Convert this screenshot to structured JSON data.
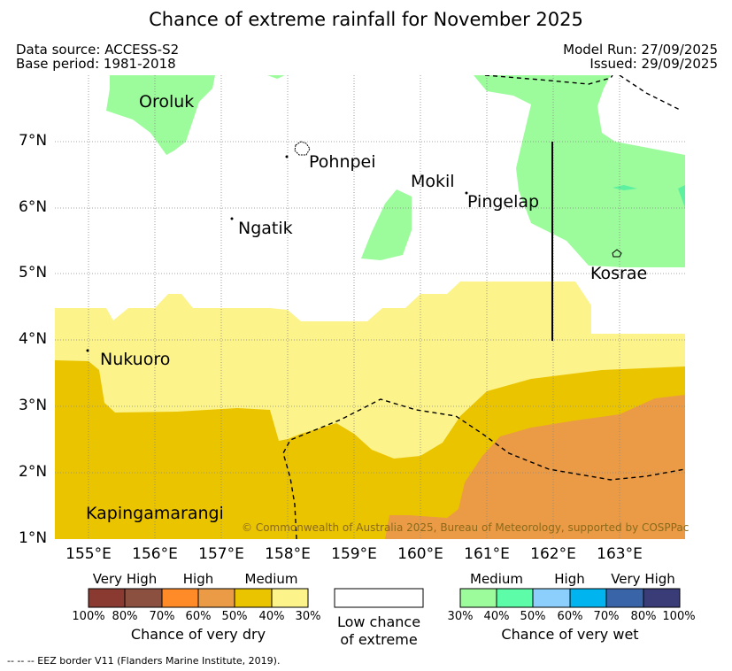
{
  "title": "Chance of extreme rainfall for November 2025",
  "header": {
    "data_source": "Data source: ACCESS-S2",
    "base_period": "Base period: 1981-2018",
    "model_run": "Model Run: 27/09/2025",
    "issued": "Issued: 29/09/2025"
  },
  "map": {
    "longitude_ticks": [
      "155°E",
      "156°E",
      "157°E",
      "158°E",
      "159°E",
      "160°E",
      "161°E",
      "162°E",
      "163°E"
    ],
    "latitude_ticks": [
      "7°N",
      "6°N",
      "5°N",
      "4°N",
      "3°N",
      "2°N",
      "1°N"
    ],
    "places": {
      "oroluk": "Oroluk",
      "pohnpei": "Pohnpei",
      "mokil": "Mokil",
      "pingelap": "Pingelap",
      "ngatik": "Ngatik",
      "kosrae": "Kosrae",
      "nukuoro": "Nukuoro",
      "kapingamarangi": "Kapingamarangi"
    },
    "copyright": "© Commonwealth of Australia 2025, Bureau of Meteorology, supported by COSPPac",
    "colors": {
      "dry_medium_light": "#fcf38a",
      "dry_medium": "#ebc400",
      "dry_high": "#eb9b46",
      "wet_medium": "#9cfc9c",
      "wet_medium_strong": "#5cf0a0"
    }
  },
  "legend": {
    "dry": {
      "groups": [
        "Very High",
        "High",
        "Medium"
      ],
      "percent_labels": [
        "100%",
        "80%",
        "70%",
        "60%",
        "50%",
        "40%",
        "30%"
      ],
      "title": "Chance of very dry",
      "colors": [
        "#8b3a32",
        "#8b5040",
        "#ff8a28",
        "#eb9b46",
        "#ebc400",
        "#fcf38a"
      ]
    },
    "neutral": {
      "title_line1": "Low chance",
      "title_line2": "of extreme",
      "color": "#ffffff"
    },
    "wet": {
      "groups": [
        "Medium",
        "High",
        "Very High"
      ],
      "percent_labels": [
        "30%",
        "40%",
        "50%",
        "60%",
        "70%",
        "80%",
        "100%"
      ],
      "title": "Chance of very wet",
      "colors": [
        "#9cfc9c",
        "#5cfca8",
        "#8ccffc",
        "#00b4f0",
        "#3a64a8",
        "#3a3c78"
      ]
    }
  },
  "footnote": "-- -- -- EEZ border V11 (Flanders Marine Institute, 2019)."
}
